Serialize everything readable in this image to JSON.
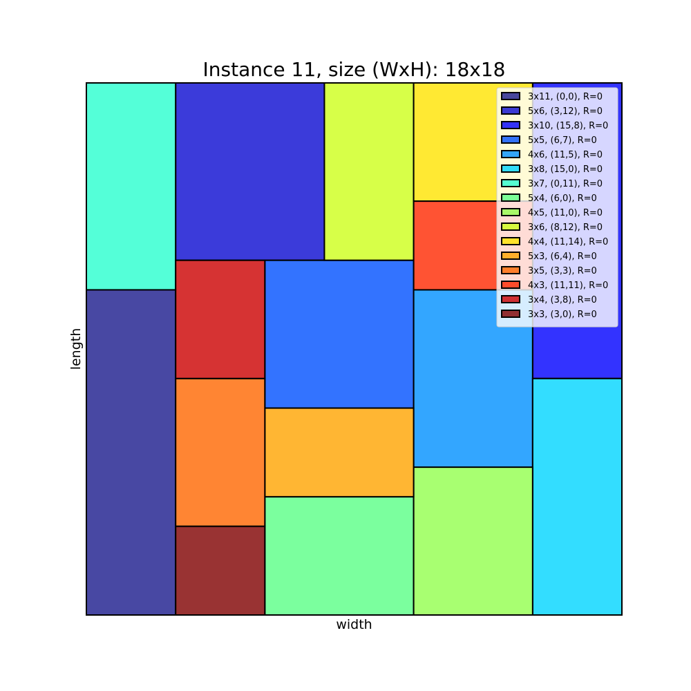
{
  "chart_data": {
    "type": "packing",
    "title": "Instance 11, size (WxH): 18x18",
    "xlabel": "width",
    "ylabel": "length",
    "container": {
      "width": 18,
      "height": 18
    },
    "legend_position": "top-right",
    "rectangles": [
      {
        "label": "3x11, (0,0), R=0",
        "x": 0,
        "y": 0,
        "w": 3,
        "h": 11,
        "color": "#1a1a8c"
      },
      {
        "label": "5x6, (3,12), R=0",
        "x": 3,
        "y": 12,
        "w": 5,
        "h": 6,
        "color": "#0a0ad1"
      },
      {
        "label": "3x10, (15,8), R=0",
        "x": 15,
        "y": 8,
        "w": 3,
        "h": 10,
        "color": "#0000ff"
      },
      {
        "label": "5x5, (6,7), R=0",
        "x": 6,
        "y": 7,
        "w": 5,
        "h": 5,
        "color": "#0050ff"
      },
      {
        "label": "4x6, (11,5), R=0",
        "x": 11,
        "y": 5,
        "w": 4,
        "h": 6,
        "color": "#0090ff"
      },
      {
        "label": "3x8, (15,0), R=0",
        "x": 15,
        "y": 0,
        "w": 3,
        "h": 8,
        "color": "#00d4ff"
      },
      {
        "label": "3x7, (0,11), R=0",
        "x": 0,
        "y": 11,
        "w": 3,
        "h": 7,
        "color": "#29ffce"
      },
      {
        "label": "5x4, (6,0), R=0",
        "x": 6,
        "y": 0,
        "w": 5,
        "h": 4,
        "color": "#5aff86"
      },
      {
        "label": "4x5, (11,0), R=0",
        "x": 11,
        "y": 0,
        "w": 4,
        "h": 5,
        "color": "#92ff4d"
      },
      {
        "label": "3x6, (8,12), R=0",
        "x": 8,
        "y": 12,
        "w": 3,
        "h": 6,
        "color": "#cdff1a"
      },
      {
        "label": "4x4, (11,14), R=0",
        "x": 11,
        "y": 14,
        "w": 4,
        "h": 4,
        "color": "#ffe400"
      },
      {
        "label": "5x3, (6,4), R=0",
        "x": 6,
        "y": 4,
        "w": 5,
        "h": 3,
        "color": "#ffa400"
      },
      {
        "label": "3x5, (3,3), R=0",
        "x": 3,
        "y": 3,
        "w": 3,
        "h": 5,
        "color": "#ff6600"
      },
      {
        "label": "4x3, (11,11), R=0",
        "x": 11,
        "y": 11,
        "w": 4,
        "h": 3,
        "color": "#ff2800"
      },
      {
        "label": "3x4, (3,8), R=0",
        "x": 3,
        "y": 8,
        "w": 3,
        "h": 4,
        "color": "#cc0000"
      },
      {
        "label": "3x3, (3,0), R=0",
        "x": 3,
        "y": 0,
        "w": 3,
        "h": 3,
        "color": "#800000"
      }
    ]
  }
}
